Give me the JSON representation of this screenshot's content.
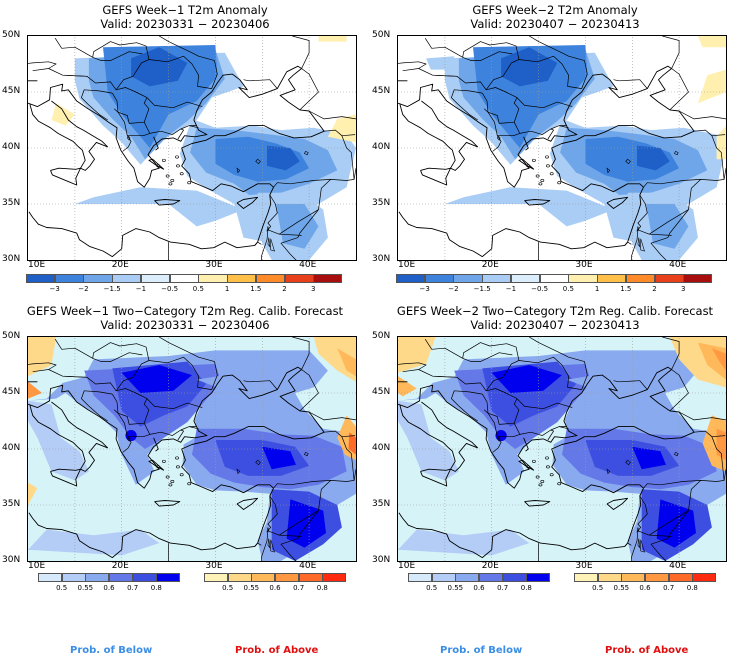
{
  "panels": [
    {
      "id": "p1",
      "title": "GEFS Week−1 T2m Anomaly",
      "valid": "Valid: 20230331 − 20230406"
    },
    {
      "id": "p2",
      "title": "GEFS Week−2 T2m Anomaly",
      "valid": "Valid: 20230407 − 20230413"
    },
    {
      "id": "p3",
      "title": "GEFS Week−1 Two−Category T2m Reg. Calib. Forecast",
      "valid": "Valid: 20230331 − 20230406"
    },
    {
      "id": "p4",
      "title": "GEFS Week−2 Two−Category T2m Reg. Calib. Forecast",
      "valid": "Valid: 20230407 − 20230413"
    }
  ],
  "lat_labels": [
    "50N",
    "45N",
    "40N",
    "35N",
    "30N"
  ],
  "lon_labels": [
    "10E",
    "20E",
    "30E",
    "40E"
  ],
  "anomaly_colorbar": {
    "ticks": [
      "−3",
      "−2",
      "−1.5",
      "−1",
      "−0.5",
      "0.5",
      "1",
      "1.5",
      "2",
      "3"
    ],
    "colors": [
      "#1f5fc8",
      "#3d82dc",
      "#6fa6ea",
      "#a9cdf5",
      "#dcedfc",
      "#ffffff",
      "#fff0b0",
      "#ffc04a",
      "#ff8a2a",
      "#e8401a",
      "#a80e0e"
    ]
  },
  "prob_below_colorbar": {
    "ticks": [
      "0.5",
      "0.55",
      "0.6",
      "0.7",
      "0.8"
    ],
    "colors": [
      "#d6eafb",
      "#b4cdf6",
      "#8aaaf0",
      "#6478e8",
      "#3d4fe0",
      "#0000ee"
    ]
  },
  "prob_above_colorbar": {
    "ticks": [
      "0.5",
      "0.55",
      "0.6",
      "0.7",
      "0.8"
    ],
    "colors": [
      "#fff2b8",
      "#ffd98a",
      "#ffb85a",
      "#ff9840",
      "#ff6a28",
      "#ff2a10"
    ]
  },
  "prob_labels": {
    "below": "Prob. of Below",
    "above": "Prob. of Above"
  },
  "colors": {
    "below_label": "#3a8ee6",
    "above_label": "#e01010",
    "anomaly_fill": "#6fa6ea",
    "prob_fill": "#4a5de8",
    "sea_prob": "#d6f3f8"
  }
}
